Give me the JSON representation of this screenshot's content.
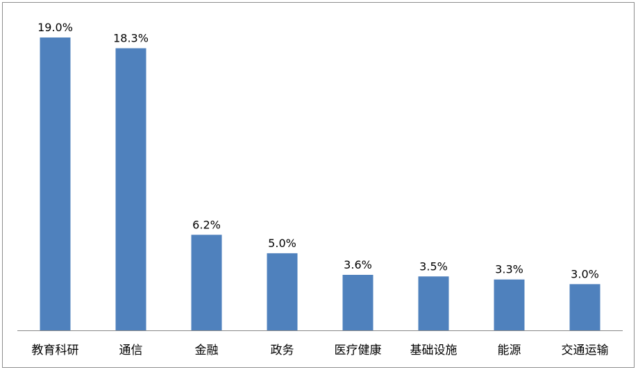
{
  "chart_data": {
    "type": "bar",
    "categories": [
      "教育科研",
      "通信",
      "金融",
      "政务",
      "医疗健康",
      "基础设施",
      "能源",
      "交通运输"
    ],
    "values": [
      19.0,
      18.3,
      6.2,
      5.0,
      3.6,
      3.5,
      3.3,
      3.0
    ],
    "data_labels": [
      "19.0%",
      "18.3%",
      "6.2%",
      "5.0%",
      "3.6%",
      "3.5%",
      "3.3%",
      "3.0%"
    ],
    "unit": "%",
    "title": "",
    "xlabel": "",
    "ylabel": "",
    "ylim": [
      0,
      19.0
    ],
    "grid": false,
    "legend": "none",
    "colors": {
      "bar": "#4f81bd",
      "axis": "#868686",
      "border": "#8c8c8c"
    }
  }
}
